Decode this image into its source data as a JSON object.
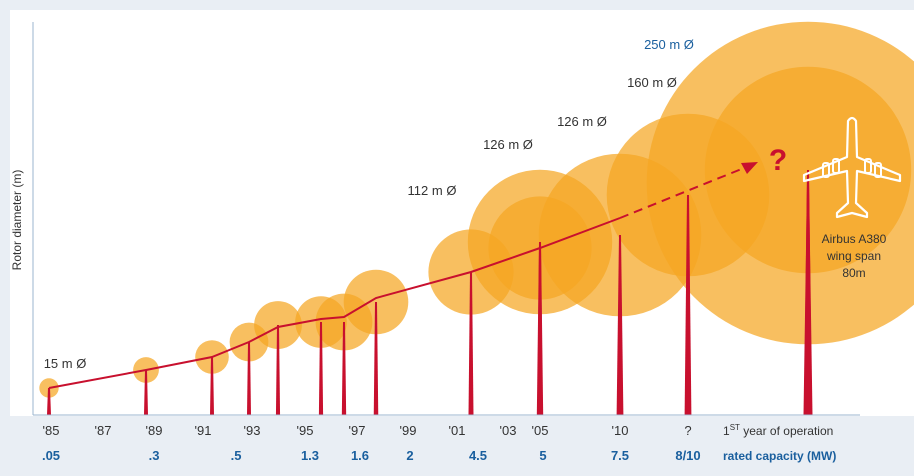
{
  "chart_data": {
    "type": "scatter",
    "ylabel": "Rotor diameter (m)",
    "x_axis_title_super": "ST",
    "x_axis_title_pre": "1",
    "x_axis_title_post": " year of operation",
    "capacity_axis_title": "rated capacity (MW)",
    "year_ticks": [
      "'85",
      "'87",
      "'89",
      "'91",
      "'93",
      "'95",
      "'97",
      "'99",
      "'01",
      "'03",
      "'05",
      "'10",
      "?"
    ],
    "capacity_ticks": [
      ".05",
      ".3",
      ".5",
      "1.3",
      "1.6",
      "2",
      "4.5",
      "5",
      "7.5",
      "8/10"
    ],
    "diameter_labels": [
      "15 m Ø",
      "112 m Ø",
      "126 m Ø",
      "126 m Ø",
      "160 m Ø",
      "250 m Ø"
    ],
    "turbines": [
      {
        "year": "'85",
        "diameter_m": 15
      },
      {
        "year": "'89",
        "diameter_m": 20
      },
      {
        "year": "'91",
        "diameter_m": 26
      },
      {
        "year": "'92",
        "diameter_m": 30
      },
      {
        "year": "'93",
        "diameter_m": 37
      },
      {
        "year": "'95",
        "diameter_m": 40
      },
      {
        "year": "'96",
        "diameter_m": 44
      },
      {
        "year": "'97",
        "diameter_m": 50
      },
      {
        "year": "'99",
        "diameter_m": 66
      },
      {
        "year": "'01",
        "diameter_m": 80
      },
      {
        "year": "'05",
        "diameter_m": 112
      },
      {
        "year": "'05",
        "diameter_m": 126
      },
      {
        "year": "'10",
        "diameter_m": 126
      },
      {
        "year": "?",
        "diameter_m": 160
      },
      {
        "year": "?",
        "diameter_m": 250
      }
    ],
    "question_mark": "?",
    "annotation": {
      "lines": [
        "Airbus A380",
        "wing span",
        "80m"
      ]
    },
    "grid": false,
    "colors": {
      "circle": "#f5a623",
      "circle_opacity": 0.72,
      "tower": "#c8102e",
      "trend": "#c8102e",
      "axis_labels": "#1a5f9e",
      "text": "#333333",
      "background": "#e9eef4",
      "plot_bg": "#ffffff"
    }
  }
}
